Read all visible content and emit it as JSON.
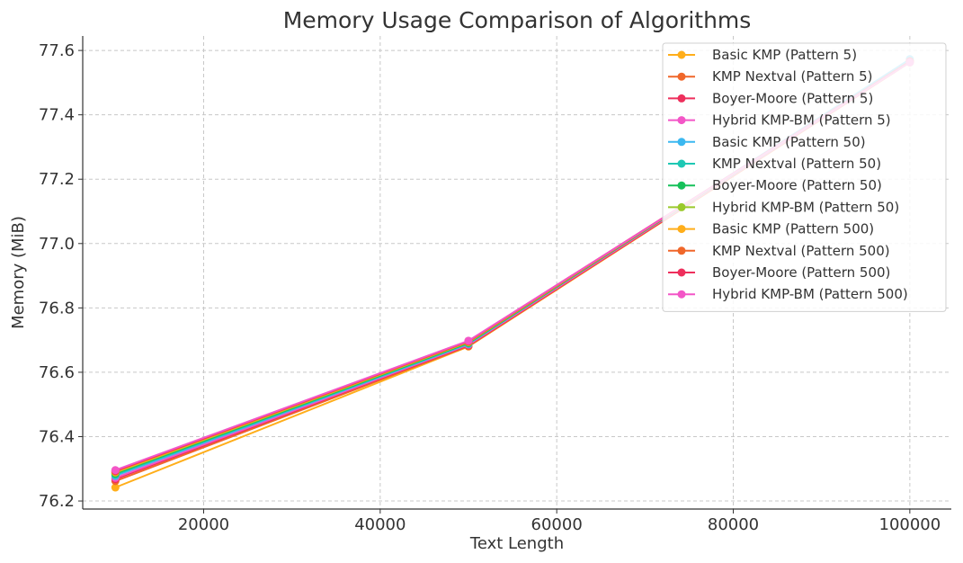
{
  "chart_data": {
    "type": "line",
    "title": "Memory Usage Comparison of Algorithms",
    "xlabel": "Text Length",
    "ylabel": "Memory (MiB)",
    "xlim": [
      6300,
      104700
    ],
    "ylim": [
      76.175,
      77.645
    ],
    "xticks": [
      20000,
      40000,
      60000,
      80000,
      100000
    ],
    "xtick_labels": [
      "20000",
      "40000",
      "60000",
      "80000",
      "100000"
    ],
    "yticks": [
      76.2,
      76.4,
      76.6,
      76.8,
      77.0,
      77.2,
      77.4,
      77.6
    ],
    "ytick_labels": [
      "76.2",
      "76.4",
      "76.6",
      "76.8",
      "77.0",
      "77.2",
      "77.4",
      "77.6"
    ],
    "grid": true,
    "legend_position": "top-right",
    "x": [
      10000,
      50000,
      100000
    ],
    "series": [
      {
        "name": "Basic KMP (Pattern 5)",
        "color": "#ffae1a",
        "values": [
          76.242,
          76.68,
          77.563
        ]
      },
      {
        "name": "KMP Nextval (Pattern 5)",
        "color": "#f0672a",
        "values": [
          76.262,
          76.681,
          77.563
        ]
      },
      {
        "name": "Boyer-Moore (Pattern 5)",
        "color": "#ee2f5c",
        "values": [
          76.268,
          76.684,
          77.564
        ]
      },
      {
        "name": "Hybrid KMP-BM (Pattern 5)",
        "color": "#f356c7",
        "values": [
          76.272,
          76.686,
          77.565
        ]
      },
      {
        "name": "Basic KMP (Pattern 50)",
        "color": "#3bb8f0",
        "values": [
          76.278,
          76.688,
          77.573
        ]
      },
      {
        "name": "KMP Nextval (Pattern 50)",
        "color": "#1ec8b4",
        "values": [
          76.282,
          76.69,
          77.566
        ]
      },
      {
        "name": "Boyer-Moore (Pattern 50)",
        "color": "#16c15a",
        "values": [
          76.285,
          76.691,
          77.566
        ]
      },
      {
        "name": "Hybrid KMP-BM (Pattern 50)",
        "color": "#9ac92c",
        "values": [
          76.288,
          76.693,
          77.566
        ]
      },
      {
        "name": "Basic KMP (Pattern 500)",
        "color": "#ffae1a",
        "values": [
          76.29,
          76.694,
          77.566
        ]
      },
      {
        "name": "KMP Nextval (Pattern 500)",
        "color": "#f0672a",
        "values": [
          76.292,
          76.695,
          77.566
        ]
      },
      {
        "name": "Boyer-Moore (Pattern 500)",
        "color": "#ee2f5c",
        "values": [
          76.294,
          76.697,
          77.566
        ]
      },
      {
        "name": "Hybrid KMP-BM (Pattern 500)",
        "color": "#f356c7",
        "values": [
          76.296,
          76.698,
          77.563
        ]
      }
    ]
  }
}
